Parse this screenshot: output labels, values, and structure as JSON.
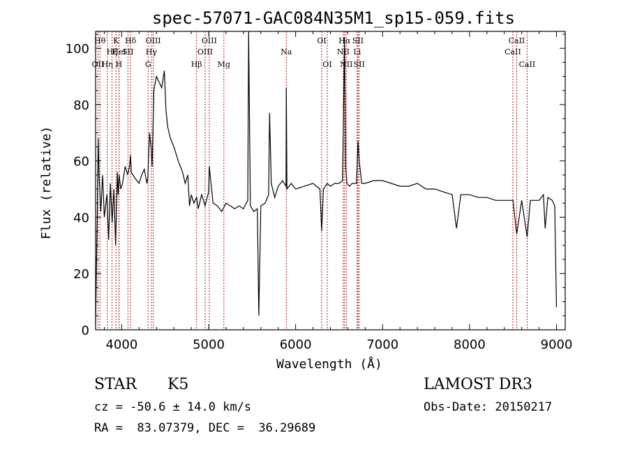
{
  "chart_data": {
    "type": "line",
    "title": "spec-57071-GAC084N35M1_sp15-059.fits",
    "xlabel": "Wavelength (Å)",
    "ylabel": "Flux (relative)",
    "xlim": [
      3700,
      9100
    ],
    "ylim": [
      0,
      106
    ],
    "xticks": [
      4000,
      5000,
      6000,
      7000,
      8000,
      9000
    ],
    "yticks": [
      0,
      20,
      40,
      60,
      80,
      100
    ],
    "xtick_labels": [
      "4000",
      "5000",
      "6000",
      "7000",
      "8000",
      "9000"
    ],
    "ytick_labels": [
      "0",
      "20",
      "40",
      "60",
      "80",
      "100"
    ],
    "grid": false,
    "series": [
      {
        "x": [
          3700,
          3710,
          3720,
          3730,
          3740,
          3760,
          3780,
          3800,
          3830,
          3850,
          3870,
          3890,
          3910,
          3930,
          3950,
          3960,
          3970,
          3990,
          4010,
          4040,
          4070,
          4090,
          4102,
          4110,
          4150,
          4200,
          4230,
          4260,
          4290,
          4300,
          4320,
          4340,
          4350,
          4370,
          4400,
          4430,
          4460,
          4490,
          4510,
          4530,
          4560,
          4600,
          4650,
          4700,
          4730,
          4760,
          4780,
          4800,
          4830,
          4861,
          4880,
          4920,
          4959,
          5000,
          5007,
          5050,
          5100,
          5150,
          5200,
          5250,
          5300,
          5350,
          5400,
          5450,
          5460,
          5480,
          5520,
          5560,
          5577,
          5600,
          5650,
          5690,
          5700,
          5720,
          5760,
          5800,
          5850,
          5890,
          5893,
          5900,
          5950,
          6000,
          6100,
          6200,
          6280,
          6300,
          6320,
          6364,
          6400,
          6450,
          6500,
          6540,
          6563,
          6575,
          6590,
          6620,
          6650,
          6700,
          6717,
          6731,
          6760,
          6800,
          6900,
          7000,
          7100,
          7200,
          7300,
          7400,
          7500,
          7600,
          7700,
          7800,
          7850,
          7900,
          8000,
          8100,
          8200,
          8300,
          8400,
          8500,
          8542,
          8600,
          8662,
          8700,
          8800,
          8850,
          8870,
          8900,
          8950,
          8980,
          9000
        ],
        "y": [
          2,
          22,
          42,
          68,
          55,
          42,
          55,
          40,
          48,
          32,
          52,
          38,
          50,
          30,
          56,
          48,
          55,
          50,
          52,
          58,
          55,
          58,
          62,
          56,
          54,
          52,
          55,
          57,
          52,
          54,
          70,
          64,
          58,
          85,
          90,
          88,
          86,
          92,
          78,
          72,
          68,
          65,
          60,
          56,
          52,
          55,
          44,
          48,
          45,
          47,
          43,
          48,
          44,
          49,
          58,
          45,
          44,
          42,
          45,
          44,
          43,
          44,
          43,
          46,
          106,
          44,
          42,
          43,
          5,
          44,
          45,
          48,
          77,
          52,
          47,
          51,
          53,
          51,
          86,
          50,
          52,
          50,
          51,
          52,
          50,
          35,
          50,
          52,
          51,
          52,
          52,
          53,
          104,
          58,
          52,
          51,
          52,
          52,
          67,
          60,
          52,
          52,
          53,
          53,
          52,
          51,
          51,
          52,
          50,
          50,
          49,
          48,
          36,
          48,
          48,
          47,
          47,
          46,
          46,
          46,
          34,
          46,
          33,
          46,
          46,
          48,
          36,
          47,
          46,
          44,
          8
        ]
      }
    ],
    "lines": [
      {
        "label": "OII",
        "x": 3727,
        "row": 3
      },
      {
        "label": "Hθ",
        "x": 3750,
        "row": 1
      },
      {
        "label": "Hη",
        "x": 3835,
        "row": 3
      },
      {
        "label": "Hζ",
        "x": 3889,
        "row": 2
      },
      {
        "label": "K",
        "x": 3934,
        "row": 1
      },
      {
        "label": "H",
        "x": 3968,
        "row": 3
      },
      {
        "label": "HeI",
        "x": 3970,
        "row": 2
      },
      {
        "label": "Hδ",
        "x": 4102,
        "row": 1
      },
      {
        "label": "SII",
        "x": 4072,
        "row": 2
      },
      {
        "label": "G",
        "x": 4304,
        "row": 3
      },
      {
        "label": "Hγ",
        "x": 4341,
        "row": 2
      },
      {
        "label": "OIII",
        "x": 4363,
        "row": 1
      },
      {
        "label": "Hβ",
        "x": 4861,
        "row": 3
      },
      {
        "label": "OIII",
        "x": 4959,
        "row": 2
      },
      {
        "label": "OIII",
        "x": 5007,
        "row": 1
      },
      {
        "label": "Mg",
        "x": 5175,
        "row": 3
      },
      {
        "label": "Na",
        "x": 5893,
        "row": 2
      },
      {
        "label": "OI",
        "x": 6300,
        "row": 1
      },
      {
        "label": "OI",
        "x": 6364,
        "row": 3
      },
      {
        "label": "NII",
        "x": 6548,
        "row": 2
      },
      {
        "label": "Hα",
        "x": 6563,
        "row": 1
      },
      {
        "label": "NII",
        "x": 6583,
        "row": 3
      },
      {
        "label": "SII",
        "x": 6717,
        "row": 1
      },
      {
        "label": "SII",
        "x": 6731,
        "row": 3
      },
      {
        "label": "Li",
        "x": 6708,
        "row": 2
      },
      {
        "label": "CaII",
        "x": 8498,
        "row": 2
      },
      {
        "label": "CaII",
        "x": 8542,
        "row": 1
      },
      {
        "label": "CaII",
        "x": 8662,
        "row": 3
      }
    ]
  },
  "footer": {
    "object_class": "STAR",
    "subclass": "K5",
    "survey": "LAMOST DR3",
    "velocity": "cz = -50.6 ± 14.0 km/s",
    "obs_date": "Obs-Date: 20150217",
    "coords": "RA =  83.07379, DEC =  36.29689"
  },
  "colors": {
    "spectrum": "#000000",
    "line_markers": "#b01818",
    "axes": "#000000"
  }
}
